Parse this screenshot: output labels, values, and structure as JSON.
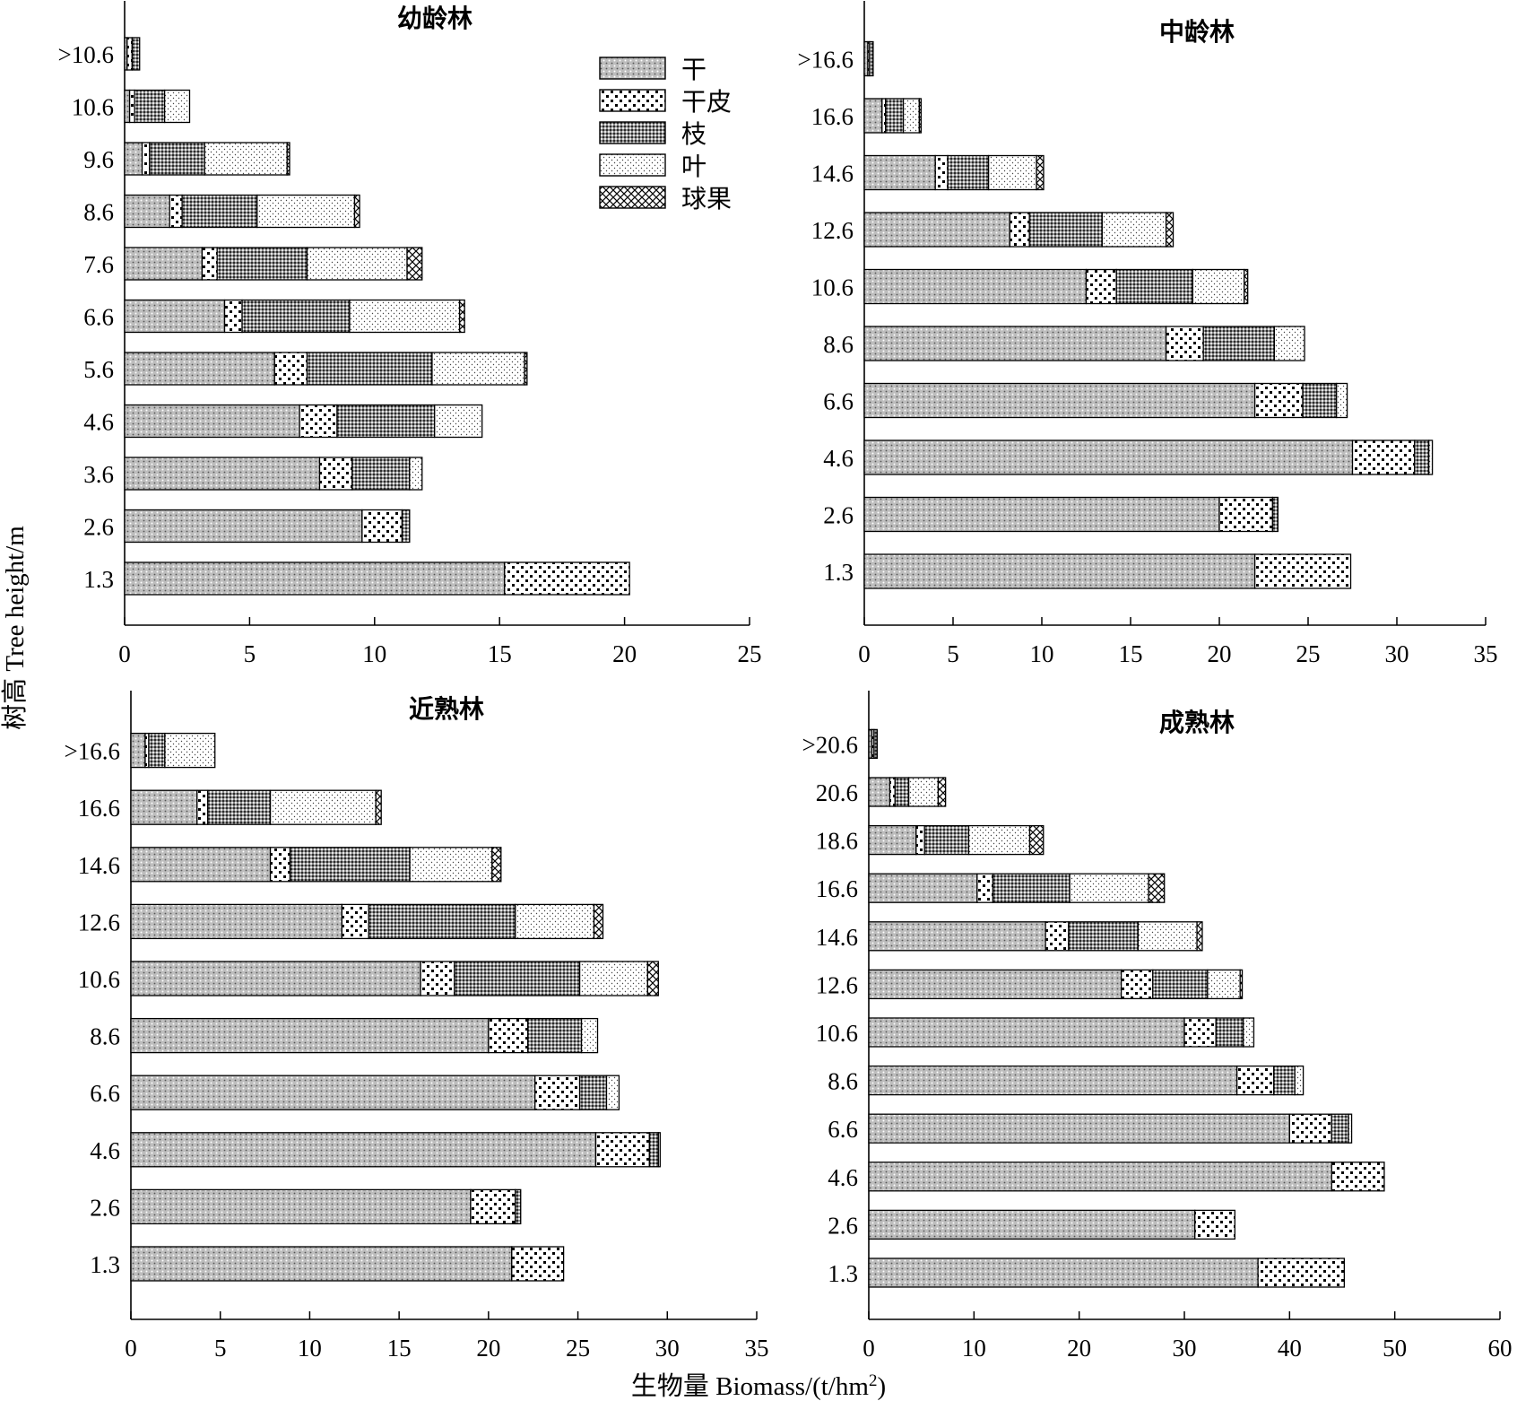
{
  "chart_data": [
    {
      "type": "bar",
      "orientation": "horizontal",
      "stacked": true,
      "title": "幼龄林",
      "categories": [
        "1.3",
        "2.6",
        "3.6",
        "4.6",
        "5.6",
        "6.6",
        "7.6",
        "8.6",
        "9.6",
        "10.6",
        ">10.6"
      ],
      "xlim": [
        0,
        25
      ],
      "xticks": [
        0,
        5,
        10,
        15,
        20,
        25
      ],
      "series": [
        {
          "name": "干",
          "values": [
            15.2,
            9.5,
            7.8,
            7.0,
            6.0,
            4.0,
            3.1,
            1.8,
            0.7,
            0.2,
            0.1
          ]
        },
        {
          "name": "干皮",
          "values": [
            5.0,
            1.6,
            1.3,
            1.5,
            1.3,
            0.7,
            0.6,
            0.5,
            0.3,
            0.2,
            0.2
          ]
        },
        {
          "name": "枝",
          "values": [
            0.0,
            0.3,
            2.3,
            3.9,
            5.0,
            4.3,
            3.6,
            3.0,
            2.2,
            1.2,
            0.3
          ]
        },
        {
          "name": "叶",
          "values": [
            0.0,
            0.0,
            0.5,
            1.9,
            3.7,
            4.4,
            4.0,
            3.9,
            3.3,
            1.0,
            0.0
          ]
        },
        {
          "name": "球果",
          "values": [
            0.0,
            0.0,
            0.0,
            0.0,
            0.1,
            0.2,
            0.6,
            0.2,
            0.1,
            0.0,
            0.0
          ]
        }
      ]
    },
    {
      "type": "bar",
      "orientation": "horizontal",
      "stacked": true,
      "title": "中龄林",
      "categories": [
        "1.3",
        "2.6",
        "4.6",
        "6.6",
        "8.6",
        "10.6",
        "12.6",
        "14.6",
        "16.6",
        ">16.6"
      ],
      "xlim": [
        0,
        35
      ],
      "xticks": [
        0,
        5,
        10,
        15,
        20,
        25,
        30,
        35
      ],
      "series": [
        {
          "name": "干",
          "values": [
            22.0,
            20.0,
            27.5,
            22.0,
            17.0,
            12.5,
            8.2,
            4.0,
            1.0,
            0.2
          ]
        },
        {
          "name": "干皮",
          "values": [
            5.4,
            3.0,
            3.5,
            2.7,
            2.1,
            1.7,
            1.1,
            0.7,
            0.2,
            0.1
          ]
        },
        {
          "name": "枝",
          "values": [
            0.0,
            0.3,
            0.8,
            1.9,
            4.0,
            4.3,
            4.1,
            2.3,
            1.0,
            0.2
          ]
        },
        {
          "name": "叶",
          "values": [
            0.0,
            0.0,
            0.2,
            0.6,
            1.7,
            2.9,
            3.6,
            2.7,
            0.9,
            0.0
          ]
        },
        {
          "name": "球果",
          "values": [
            0.0,
            0.0,
            0.0,
            0.0,
            0.0,
            0.2,
            0.4,
            0.4,
            0.1,
            0.0
          ]
        }
      ]
    },
    {
      "type": "bar",
      "orientation": "horizontal",
      "stacked": true,
      "title": "近熟林",
      "categories": [
        "1.3",
        "2.6",
        "4.6",
        "6.6",
        "8.6",
        "10.6",
        "12.6",
        "14.6",
        "16.6",
        ">16.6"
      ],
      "xlim": [
        0,
        35
      ],
      "xticks": [
        0,
        5,
        10,
        15,
        20,
        25,
        30,
        35
      ],
      "series": [
        {
          "name": "干",
          "values": [
            21.3,
            19.0,
            26.0,
            22.6,
            20.0,
            16.2,
            11.8,
            7.8,
            3.7,
            0.8
          ]
        },
        {
          "name": "干皮",
          "values": [
            2.9,
            2.5,
            3.0,
            2.5,
            2.2,
            1.9,
            1.5,
            1.1,
            0.6,
            0.2
          ]
        },
        {
          "name": "枝",
          "values": [
            0.0,
            0.3,
            0.5,
            1.5,
            3.0,
            7.0,
            8.2,
            6.7,
            3.5,
            0.9
          ]
        },
        {
          "name": "叶",
          "values": [
            0.0,
            0.0,
            0.1,
            0.7,
            0.9,
            3.8,
            4.4,
            4.6,
            5.9,
            2.8
          ]
        },
        {
          "name": "球果",
          "values": [
            0.0,
            0.0,
            0.0,
            0.0,
            0.0,
            0.6,
            0.5,
            0.5,
            0.3,
            0.0
          ]
        }
      ]
    },
    {
      "type": "bar",
      "orientation": "horizontal",
      "stacked": true,
      "title": "成熟林",
      "categories": [
        "1.3",
        "2.6",
        "4.6",
        "6.6",
        "8.6",
        "10.6",
        "12.6",
        "14.6",
        "16.6",
        "18.6",
        "20.6",
        ">20.6"
      ],
      "xlim": [
        0,
        60
      ],
      "xticks": [
        0,
        10,
        20,
        30,
        40,
        50,
        60
      ],
      "series": [
        {
          "name": "干",
          "values": [
            37.0,
            31.0,
            44.0,
            40.0,
            35.0,
            30.0,
            24.0,
            16.8,
            10.3,
            4.5,
            2.0,
            0.3
          ]
        },
        {
          "name": "干皮",
          "values": [
            8.2,
            3.8,
            5.0,
            4.0,
            3.5,
            3.0,
            3.0,
            2.2,
            1.5,
            0.8,
            0.5,
            0.2
          ]
        },
        {
          "name": "枝",
          "values": [
            0.0,
            0.0,
            0.0,
            1.6,
            2.0,
            2.6,
            5.2,
            6.6,
            7.3,
            4.2,
            1.3,
            0.3
          ]
        },
        {
          "name": "叶",
          "values": [
            0.0,
            0.0,
            0.0,
            0.3,
            0.8,
            1.0,
            3.1,
            5.6,
            7.5,
            5.8,
            2.8,
            0.0
          ]
        },
        {
          "name": "球果",
          "values": [
            0.0,
            0.0,
            0.0,
            0.0,
            0.0,
            0.0,
            0.2,
            0.5,
            1.5,
            1.3,
            0.7,
            0.0
          ]
        }
      ]
    }
  ],
  "axes": {
    "ylabel": "树高 Tree height/m",
    "xlabel": "生物量 Biomass/(t/hm",
    "xlabel_sup": "2",
    "xlabel_end": ")"
  },
  "legend": {
    "placement": "top-right of first panel",
    "items": [
      "干",
      "干皮",
      "枝",
      "叶",
      "球果"
    ]
  }
}
